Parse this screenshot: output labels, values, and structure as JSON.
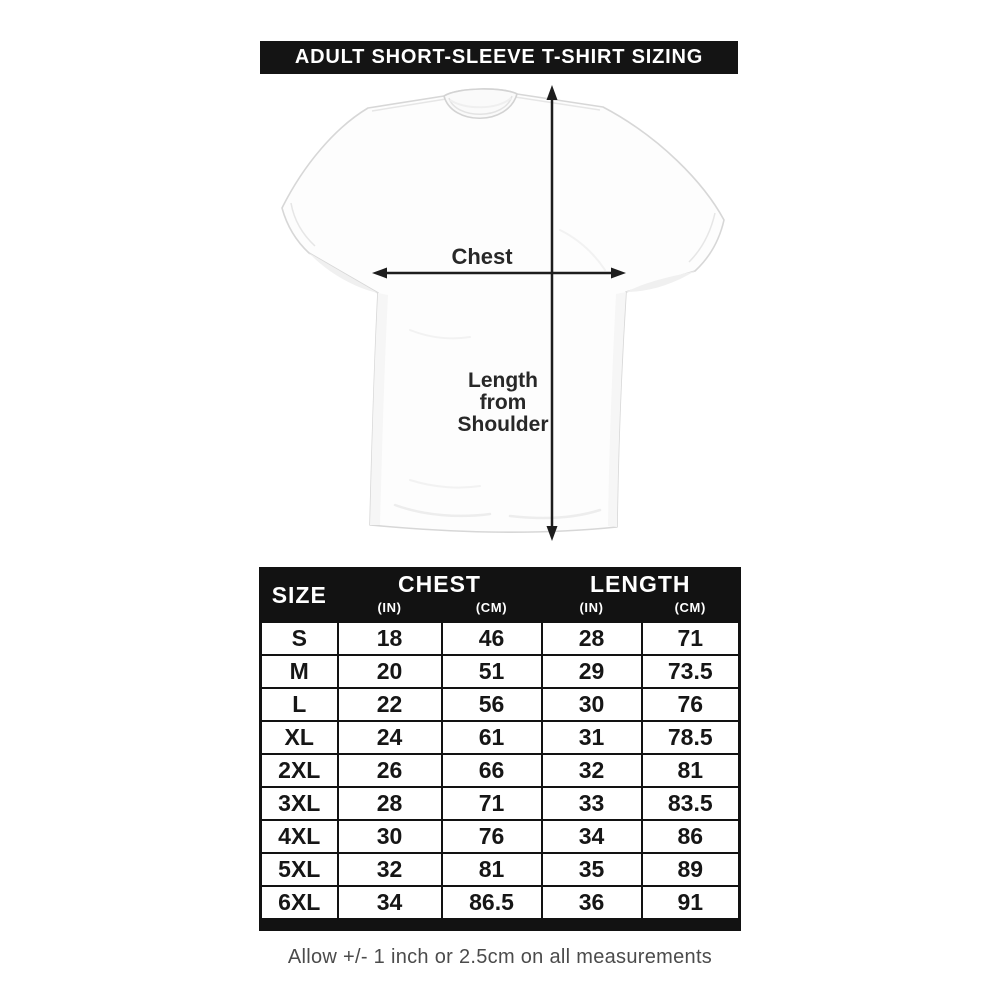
{
  "title": "ADULT SHORT-SLEEVE T-SHIRT SIZING",
  "diagram": {
    "chest_label": "Chest",
    "length_label": [
      "Length",
      "from",
      "Shoulder"
    ]
  },
  "table": {
    "headers": {
      "size": "SIZE",
      "chest": "CHEST",
      "length": "LENGTH"
    },
    "units": [
      "(IN)",
      "(CM)",
      "(IN)",
      "(CM)"
    ],
    "rows": [
      [
        "S",
        "18",
        "46",
        "28",
        "71"
      ],
      [
        "M",
        "20",
        "51",
        "29",
        "73.5"
      ],
      [
        "L",
        "22",
        "56",
        "30",
        "76"
      ],
      [
        "XL",
        "24",
        "61",
        "31",
        "78.5"
      ],
      [
        "2XL",
        "26",
        "66",
        "32",
        "81"
      ],
      [
        "3XL",
        "28",
        "71",
        "33",
        "83.5"
      ],
      [
        "4XL",
        "30",
        "76",
        "34",
        "86"
      ],
      [
        "5XL",
        "32",
        "81",
        "35",
        "89"
      ],
      [
        "6XL",
        "34",
        "86.5",
        "36",
        "91"
      ]
    ]
  },
  "note": {
    "text": "Allow +/- 1 inch or 2.5cm on all measurements"
  },
  "colors": {
    "bar": "#141414",
    "table_border": "#121212",
    "arrow": "#1d1d1d",
    "footnote_text": "#4b4b4b",
    "shirt_outline": "#d7d7d7"
  }
}
